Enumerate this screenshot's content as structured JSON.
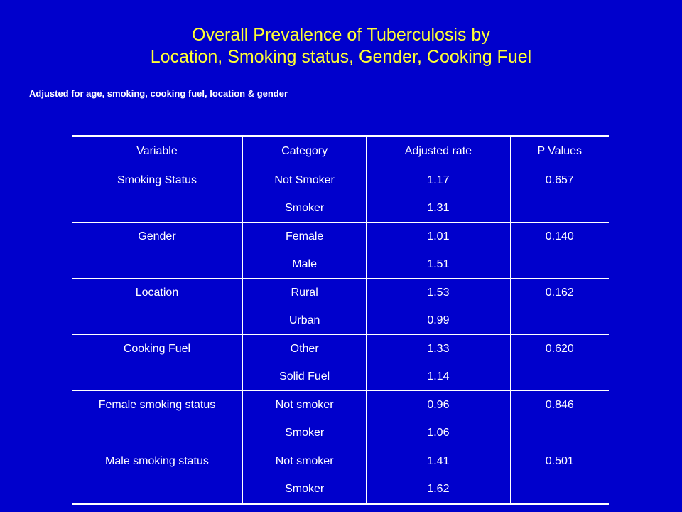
{
  "title": {
    "line1": "Overall Prevalence of Tuberculosis by",
    "line2": "Location, Smoking status, Gender, Cooking Fuel"
  },
  "subtitle": "Adjusted for age, smoking, cooking fuel, location & gender",
  "colors": {
    "background": "#0000cc",
    "title": "#ffff33",
    "text": "#ffffff"
  },
  "table": {
    "headers": [
      "Variable",
      "Category",
      "Adjusted rate",
      "P Values"
    ],
    "groups": [
      {
        "variable": "Smoking Status",
        "p_value": "0.657",
        "rows": [
          {
            "category": "Not Smoker",
            "rate": "1.17"
          },
          {
            "category": "Smoker",
            "rate": "1.31"
          }
        ]
      },
      {
        "variable": "Gender",
        "p_value": "0.140",
        "rows": [
          {
            "category": "Female",
            "rate": "1.01"
          },
          {
            "category": "Male",
            "rate": "1.51"
          }
        ]
      },
      {
        "variable": "Location",
        "p_value": "0.162",
        "rows": [
          {
            "category": "Rural",
            "rate": "1.53"
          },
          {
            "category": "Urban",
            "rate": "0.99"
          }
        ]
      },
      {
        "variable": "Cooking Fuel",
        "p_value": "0.620",
        "rows": [
          {
            "category": "Other",
            "rate": "1.33"
          },
          {
            "category": "Solid Fuel",
            "rate": "1.14"
          }
        ]
      },
      {
        "variable": "Female smoking status",
        "p_value": "0.846",
        "rows": [
          {
            "category": "Not smoker",
            "rate": "0.96"
          },
          {
            "category": "Smoker",
            "rate": "1.06"
          }
        ]
      },
      {
        "variable": "Male smoking status",
        "p_value": "0.501",
        "rows": [
          {
            "category": "Not smoker",
            "rate": "1.41"
          },
          {
            "category": "Smoker",
            "rate": "1.62"
          }
        ]
      }
    ]
  }
}
